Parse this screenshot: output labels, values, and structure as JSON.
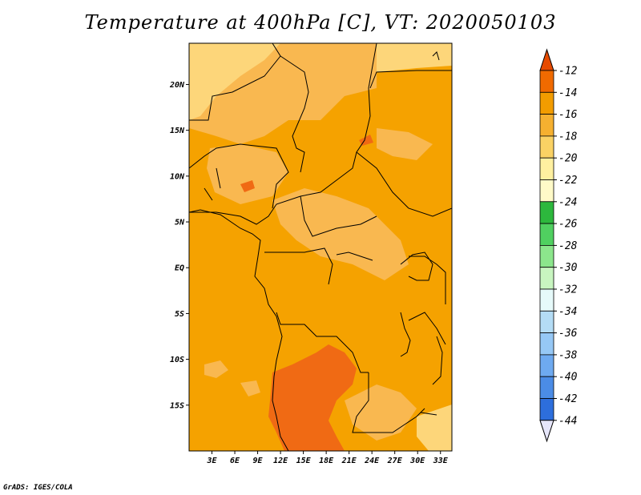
{
  "title": "Temperature at 400hPa [C], VT: 2020050103",
  "credit": "GrADS: IGES/COLA",
  "map": {
    "lon_range": [
      0,
      34.5
    ],
    "lat_range": [
      -20,
      24.5
    ],
    "lat_ticks": [
      {
        "lat": 20,
        "label": "20N"
      },
      {
        "lat": 15,
        "label": "15N"
      },
      {
        "lat": 10,
        "label": "10N"
      },
      {
        "lat": 5,
        "label": "5N"
      },
      {
        "lat": 0,
        "label": "EQ"
      },
      {
        "lat": -5,
        "label": "5S"
      },
      {
        "lat": -10,
        "label": "10S"
      },
      {
        "lat": -15,
        "label": "15S"
      }
    ],
    "lon_ticks": [
      {
        "lon": 3,
        "label": "3E"
      },
      {
        "lon": 6,
        "label": "6E"
      },
      {
        "lon": 9,
        "label": "9E"
      },
      {
        "lon": 12,
        "label": "12E"
      },
      {
        "lon": 15,
        "label": "15E"
      },
      {
        "lon": 18,
        "label": "18E"
      },
      {
        "lon": 21,
        "label": "21E"
      },
      {
        "lon": 24,
        "label": "24E"
      },
      {
        "lon": 27,
        "label": "27E"
      },
      {
        "lon": 30,
        "label": "30E"
      },
      {
        "lon": 33,
        "label": "33E"
      }
    ]
  },
  "colorbar": {
    "labels": [
      "-12",
      "-14",
      "-16",
      "-18",
      "-20",
      "-22",
      "-24",
      "-26",
      "-28",
      "-30",
      "-32",
      "-34",
      "-36",
      "-38",
      "-40",
      "-42",
      "-44"
    ],
    "colors": [
      "#e64a00",
      "#f06a00",
      "#f29c00",
      "#f5b030",
      "#fad264",
      "#fff0a0",
      "#fffac8",
      "#2db83d",
      "#50d060",
      "#8ce68c",
      "#c8f5c0",
      "#e6fafa",
      "#b4dcf5",
      "#96c8f5",
      "#6eaaf0",
      "#4b8ce6",
      "#2d6edc",
      "#1450c8",
      "#0a32a0",
      "#00146e",
      "#e6e6fa"
    ]
  },
  "fill_colors": {
    "base": "#f5a200",
    "warmer": "#f06a14",
    "cooler": "#f9b850",
    "coolest": "#fdd67a"
  }
}
